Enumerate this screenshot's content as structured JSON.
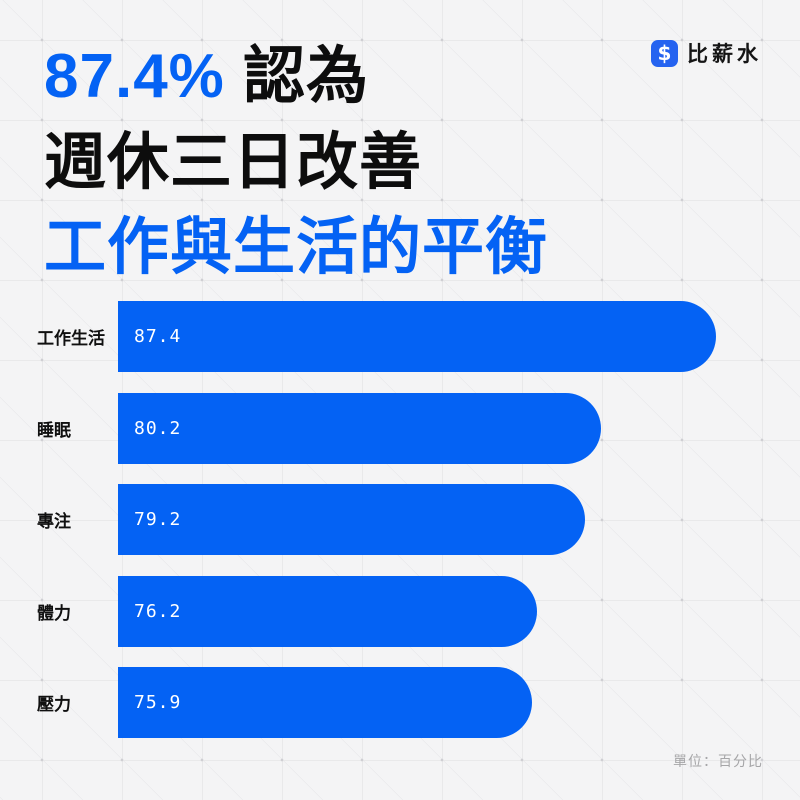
{
  "brand": {
    "name": "比薪水",
    "icon_glyph": "$",
    "icon_color": "#2563f0"
  },
  "title": {
    "line1_highlight": "87.4%",
    "line1_rest": " 認為",
    "line2": "週休三日改善",
    "line3": "工作與生活的平衡",
    "highlight_color": "#0462f4"
  },
  "chart_data": {
    "type": "bar",
    "orientation": "horizontal",
    "title": "87.4% 認為週休三日改善工作與生活的平衡",
    "categories": [
      "工作生活",
      "睡眠",
      "專注",
      "體力",
      "壓力"
    ],
    "values": [
      87.4,
      80.2,
      79.2,
      76.2,
      75.9
    ],
    "value_labels": [
      "87.4",
      "80.2",
      "79.2",
      "76.2",
      "75.9"
    ],
    "xlabel": "",
    "ylabel": "",
    "xlim": [
      50,
      91.25
    ],
    "grid": "off",
    "legend": "none",
    "bar_color": "#0462f4",
    "value_label_position": "inside-left"
  },
  "footnote": "單位：百分比",
  "colors": {
    "background": "#f4f4f5",
    "grid_line": "#e9e9ea",
    "grid_dot": "#cfcfd3",
    "bar": "#0462f4",
    "title_text": "#0d0d0d",
    "footnote_text": "#a6a6a8"
  }
}
